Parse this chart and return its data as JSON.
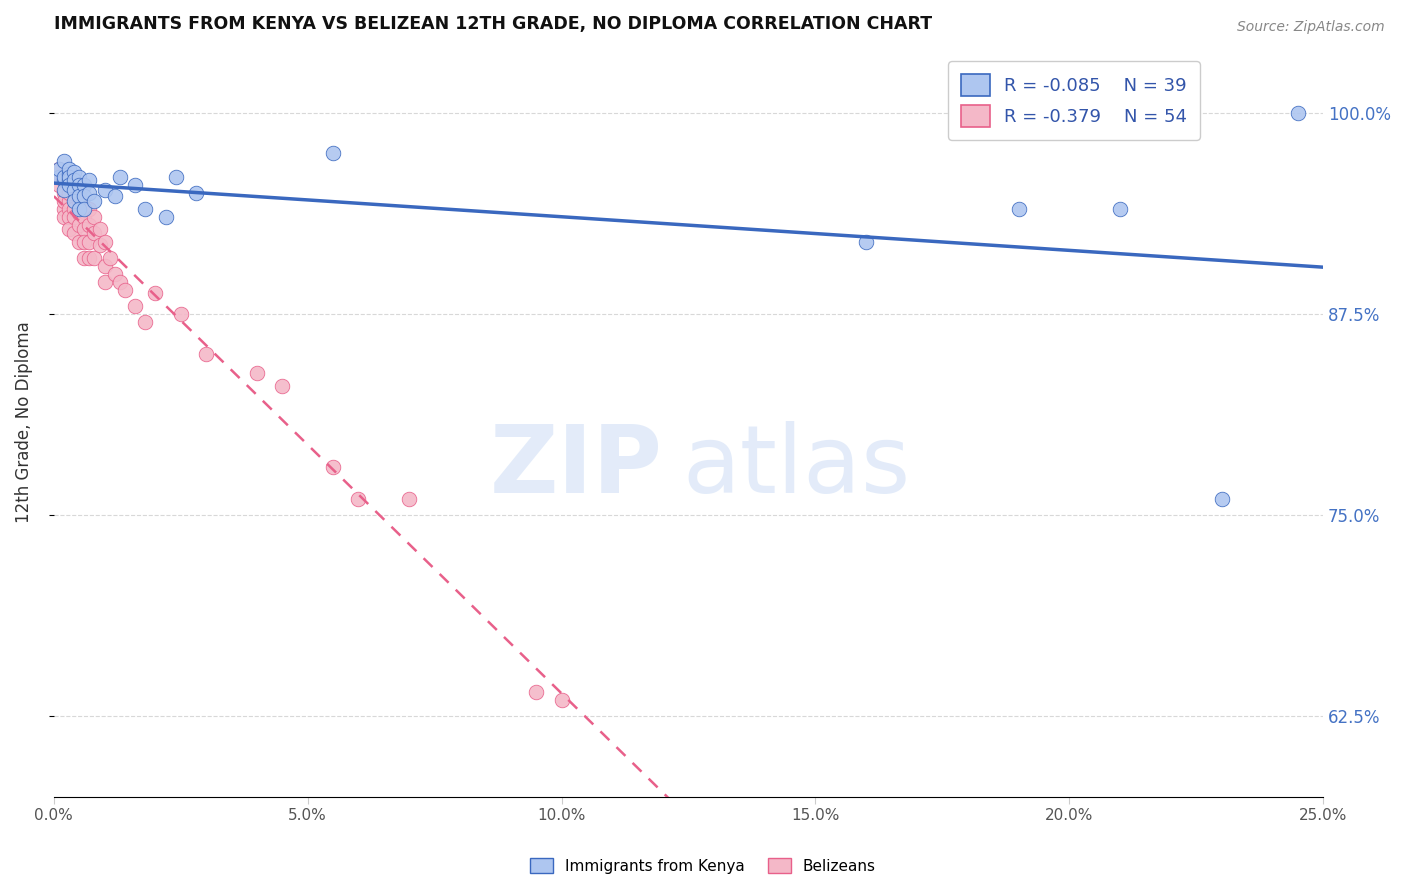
{
  "title": "IMMIGRANTS FROM KENYA VS BELIZEAN 12TH GRADE, NO DIPLOMA CORRELATION CHART",
  "source": "Source: ZipAtlas.com",
  "ylabel": "12th Grade, No Diploma",
  "legend_label1": "Immigrants from Kenya",
  "legend_label2": "Belizeans",
  "r1": -0.085,
  "n1": 39,
  "r2": -0.379,
  "n2": 54,
  "color_kenya": "#aec6f0",
  "color_belize": "#f4b8c8",
  "color_kenya_line": "#3a68bf",
  "color_belize_line": "#e8608a",
  "watermark_zip": "ZIP",
  "watermark_atlas": "atlas",
  "grid_color": "#d8d8d8",
  "xlim": [
    0.0,
    0.25
  ],
  "ylim": [
    0.575,
    1.04
  ],
  "x_ticks": [
    0.0,
    0.05,
    0.1,
    0.15,
    0.2,
    0.25
  ],
  "x_tick_labels": [
    "0.0%",
    "5.0%",
    "10.0%",
    "15.0%",
    "20.0%",
    "25.0%"
  ],
  "y_ticks": [
    0.625,
    0.75,
    0.875,
    1.0
  ],
  "y_tick_labels": [
    "62.5%",
    "75.0%",
    "87.5%",
    "100.0%"
  ],
  "kenya_x": [
    0.001,
    0.001,
    0.002,
    0.002,
    0.002,
    0.002,
    0.003,
    0.003,
    0.003,
    0.003,
    0.003,
    0.004,
    0.004,
    0.004,
    0.004,
    0.005,
    0.005,
    0.005,
    0.005,
    0.006,
    0.006,
    0.006,
    0.007,
    0.007,
    0.008,
    0.01,
    0.012,
    0.013,
    0.016,
    0.018,
    0.022,
    0.024,
    0.028,
    0.055,
    0.16,
    0.19,
    0.21,
    0.23,
    0.245
  ],
  "kenya_y": [
    0.96,
    0.965,
    0.97,
    0.958,
    0.952,
    0.96,
    0.962,
    0.965,
    0.958,
    0.96,
    0.955,
    0.963,
    0.958,
    0.952,
    0.945,
    0.96,
    0.955,
    0.948,
    0.94,
    0.955,
    0.948,
    0.94,
    0.958,
    0.95,
    0.945,
    0.952,
    0.948,
    0.96,
    0.955,
    0.94,
    0.935,
    0.96,
    0.95,
    0.975,
    0.92,
    0.94,
    0.94,
    0.76,
    1.0
  ],
  "belize_x": [
    0.001,
    0.001,
    0.001,
    0.002,
    0.002,
    0.002,
    0.002,
    0.002,
    0.003,
    0.003,
    0.003,
    0.003,
    0.003,
    0.003,
    0.004,
    0.004,
    0.004,
    0.004,
    0.005,
    0.005,
    0.005,
    0.005,
    0.006,
    0.006,
    0.006,
    0.006,
    0.007,
    0.007,
    0.007,
    0.007,
    0.008,
    0.008,
    0.008,
    0.009,
    0.009,
    0.01,
    0.01,
    0.01,
    0.011,
    0.012,
    0.013,
    0.014,
    0.016,
    0.018,
    0.02,
    0.025,
    0.03,
    0.04,
    0.045,
    0.055,
    0.06,
    0.07,
    0.095,
    0.1
  ],
  "belize_y": [
    0.96,
    0.955,
    0.965,
    0.958,
    0.95,
    0.94,
    0.935,
    0.945,
    0.96,
    0.945,
    0.94,
    0.935,
    0.928,
    0.95,
    0.955,
    0.94,
    0.935,
    0.925,
    0.945,
    0.938,
    0.93,
    0.92,
    0.935,
    0.928,
    0.92,
    0.91,
    0.94,
    0.93,
    0.92,
    0.91,
    0.935,
    0.925,
    0.91,
    0.928,
    0.918,
    0.92,
    0.905,
    0.895,
    0.91,
    0.9,
    0.895,
    0.89,
    0.88,
    0.87,
    0.888,
    0.875,
    0.85,
    0.838,
    0.83,
    0.78,
    0.76,
    0.76,
    0.64,
    0.635
  ]
}
